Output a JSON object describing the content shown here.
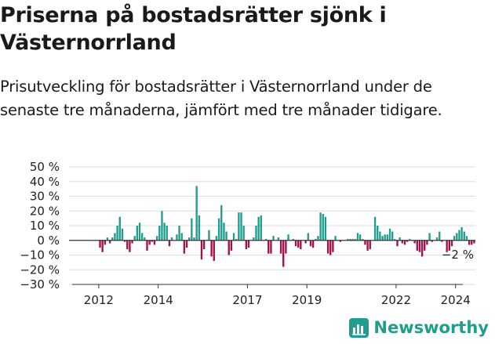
{
  "header": {
    "title": "Priserna på bostadsrätter sjönk i Västernorrland",
    "subtitle": "Prisutveckling för bostadsrätter i Västernorrland under de senaste tre månaderna, jämfört med tre månader tidigare."
  },
  "brand": {
    "name": "Newsworthy",
    "icon": "newsworthy-logo-icon",
    "color": "#1f9e8f"
  },
  "chart_data": {
    "type": "bar",
    "x_start": "2011-01",
    "interval": "month",
    "ylim": [
      -30,
      50
    ],
    "yticks": [
      50,
      40,
      30,
      20,
      10,
      0,
      -10,
      -20,
      -30
    ],
    "ytick_labels": [
      "50 %",
      "40 %",
      "30 %",
      "20 %",
      "10 %",
      "0 %",
      "−10 %",
      "−20 %",
      "−30 %"
    ],
    "xticks": [
      {
        "label": "2012",
        "index": 12
      },
      {
        "label": "2014",
        "index": 36
      },
      {
        "label": "2017",
        "index": 72
      },
      {
        "label": "2019",
        "index": 96
      },
      {
        "label": "2022",
        "index": 132
      },
      {
        "label": "2024",
        "index": 156
      }
    ],
    "colors": {
      "positive": "#1f9e8f",
      "negative": "#a3104f",
      "grid": "#dddddd",
      "zero": "#333333"
    },
    "end_label": "−2 %",
    "grid": true,
    "values": [
      0,
      0,
      0,
      0,
      0,
      0,
      0,
      0,
      0,
      0,
      0,
      0,
      -5,
      -8,
      -3,
      2,
      -2,
      2,
      5,
      10,
      16,
      8,
      -1,
      -6,
      -8,
      -2,
      3,
      10,
      12,
      5,
      2,
      -7,
      -3,
      -1,
      -3,
      3,
      10,
      20,
      12,
      10,
      -4,
      2,
      0,
      4,
      10,
      5,
      -9,
      -5,
      2,
      15,
      2,
      37,
      17,
      -13,
      -6,
      0,
      7,
      -11,
      -14,
      3,
      15,
      24,
      12,
      6,
      -10,
      -7,
      5,
      1,
      19,
      19,
      10,
      -6,
      -5,
      0,
      2,
      10,
      16,
      17,
      0,
      1,
      -9,
      -9,
      3,
      0,
      2,
      -9,
      -18,
      -9,
      4,
      0,
      1,
      -4,
      -5,
      -6,
      0,
      -2,
      5,
      -4,
      -5,
      1,
      3,
      19,
      18,
      16,
      -9,
      -10,
      -8,
      3,
      0,
      -1,
      0,
      0,
      1,
      1,
      1,
      1,
      5,
      4,
      1,
      -3,
      -7,
      -6,
      0,
      16,
      10,
      6,
      3,
      4,
      4,
      8,
      6,
      1,
      -4,
      2,
      -2,
      -3,
      -1,
      1,
      0,
      -2,
      -7,
      -8,
      -11,
      -7,
      -3,
      5,
      -1,
      0,
      2,
      6,
      -1,
      0,
      -8,
      -7,
      -4,
      3,
      5,
      7,
      9,
      6,
      3,
      -3,
      -3,
      -2
    ]
  }
}
